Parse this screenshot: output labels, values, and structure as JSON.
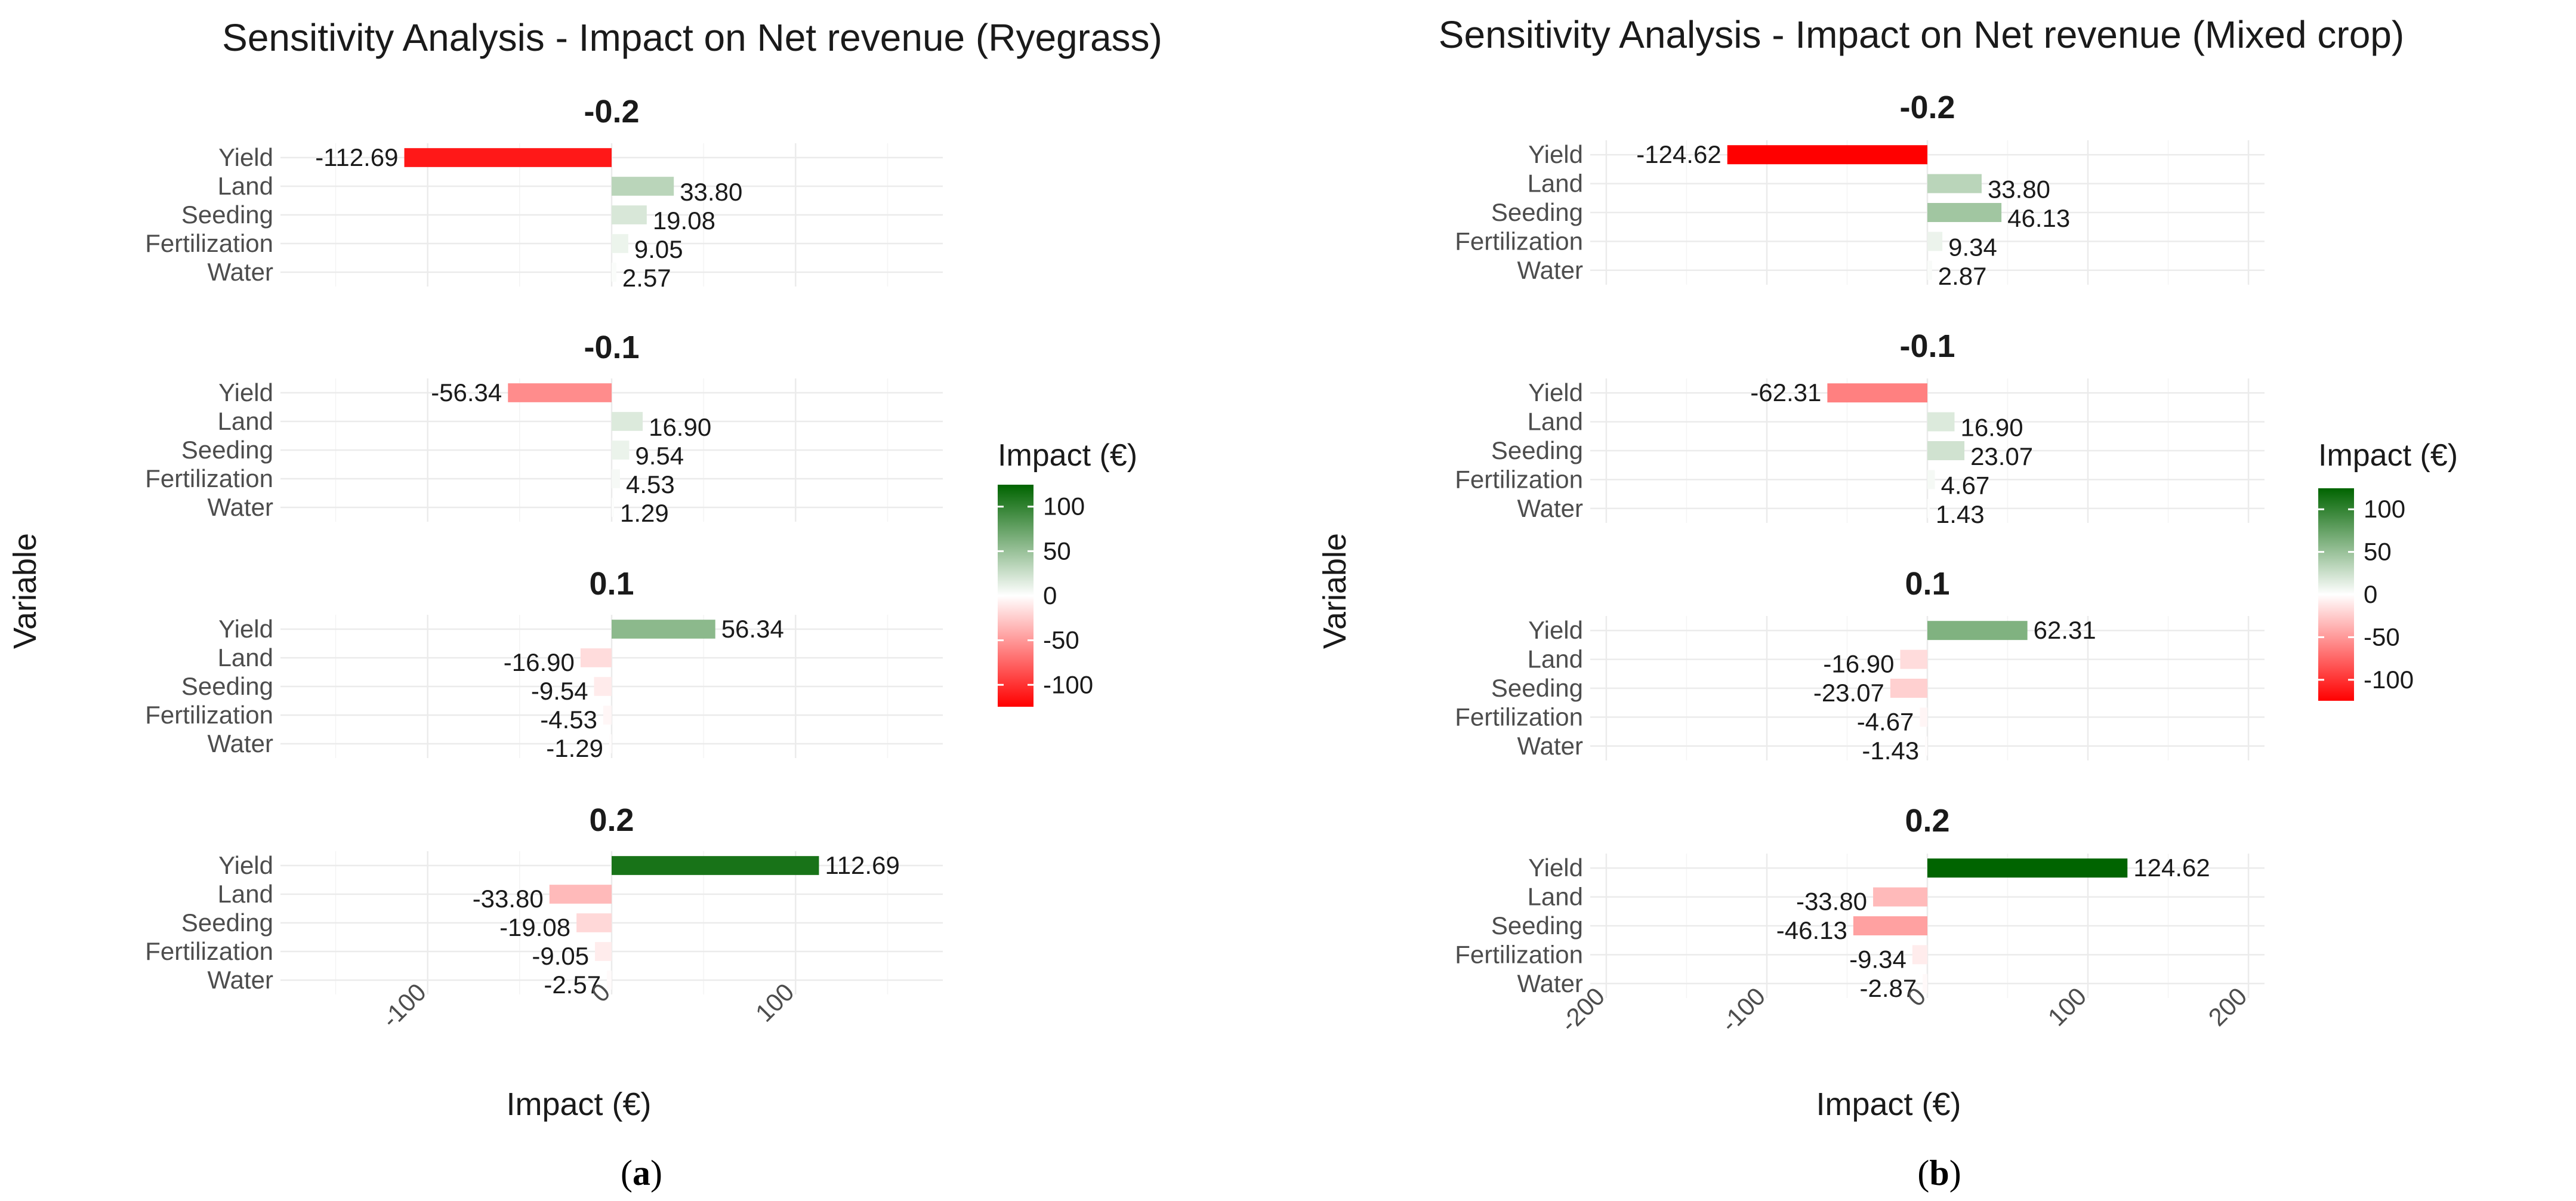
{
  "chart_data": [
    {
      "type": "bar",
      "orientation": "horizontal",
      "title": "Sensitivity Analysis - Impact on Net revenue (Ryegrass)",
      "xlabel": "Impact (€)",
      "ylabel": "Variable",
      "xlim": [
        -180,
        180
      ],
      "xticks": [
        -100,
        0,
        100
      ],
      "xtick_labels": [
        "-100",
        "0",
        "100"
      ],
      "categories": [
        "Yield",
        "Land",
        "Seeding",
        "Fertilization",
        "Water"
      ],
      "facets": [
        {
          "label": "-0.2",
          "values": [
            -112.69,
            33.8,
            19.08,
            9.05,
            2.57
          ],
          "value_labels": [
            "-112.69",
            "33.80",
            "19.08",
            "9.05",
            "2.57"
          ]
        },
        {
          "label": "-0.1",
          "values": [
            -56.34,
            16.9,
            9.54,
            4.53,
            1.29
          ],
          "value_labels": [
            "-56.34",
            "16.90",
            "9.54",
            "4.53",
            "1.29"
          ]
        },
        {
          "label": "0.1",
          "values": [
            56.34,
            -16.9,
            -9.54,
            -4.53,
            -1.29
          ],
          "value_labels": [
            "56.34",
            "-16.90",
            "-9.54",
            "-4.53",
            "-1.29"
          ]
        },
        {
          "label": "0.2",
          "values": [
            112.69,
            -33.8,
            -19.08,
            -9.05,
            -2.57
          ],
          "value_labels": [
            "112.69",
            "-33.80",
            "-19.08",
            "-9.05",
            "-2.57"
          ]
        }
      ],
      "legend": {
        "title": "Impact (€)",
        "ticks": [
          100,
          50,
          0,
          -50,
          -100
        ],
        "tick_labels": [
          "100",
          "50",
          "0",
          "-50",
          "-100"
        ],
        "limits": [
          -124.62,
          124.62
        ]
      },
      "grid": true,
      "subfigure_label": "a"
    },
    {
      "type": "bar",
      "orientation": "horizontal",
      "title": "Sensitivity Analysis - Impact on Net revenue (Mixed crop)",
      "xlabel": "Impact (€)",
      "ylabel": "Variable",
      "xlim": [
        -210,
        210
      ],
      "xticks": [
        -200,
        -100,
        0,
        100,
        200
      ],
      "xtick_labels": [
        "-200",
        "-100",
        "0",
        "100",
        "200"
      ],
      "categories": [
        "Yield",
        "Land",
        "Seeding",
        "Fertilization",
        "Water"
      ],
      "facets": [
        {
          "label": "-0.2",
          "values": [
            -124.62,
            33.8,
            46.13,
            9.34,
            2.87
          ],
          "value_labels": [
            "-124.62",
            "33.80",
            "46.13",
            "9.34",
            "2.87"
          ]
        },
        {
          "label": "-0.1",
          "values": [
            -62.31,
            16.9,
            23.07,
            4.67,
            1.43
          ],
          "value_labels": [
            "-62.31",
            "16.90",
            "23.07",
            "4.67",
            "1.43"
          ]
        },
        {
          "label": "0.1",
          "values": [
            62.31,
            -16.9,
            -23.07,
            -4.67,
            -1.43
          ],
          "value_labels": [
            "62.31",
            "-16.90",
            "-23.07",
            "-4.67",
            "-1.43"
          ]
        },
        {
          "label": "0.2",
          "values": [
            124.62,
            -33.8,
            -46.13,
            -9.34,
            -2.87
          ],
          "value_labels": [
            "124.62",
            "-33.80",
            "-46.13",
            "-9.34",
            "-2.87"
          ]
        }
      ],
      "legend": {
        "title": "Impact (€)",
        "ticks": [
          100,
          50,
          0,
          -50,
          -100
        ],
        "tick_labels": [
          "100",
          "50",
          "0",
          "-50",
          "-100"
        ],
        "limits": [
          -124.62,
          124.62
        ]
      },
      "grid": true,
      "subfigure_label": "b"
    }
  ],
  "colors": {
    "low": "#ff0000",
    "mid": "#ffffff",
    "high": "#006400"
  }
}
